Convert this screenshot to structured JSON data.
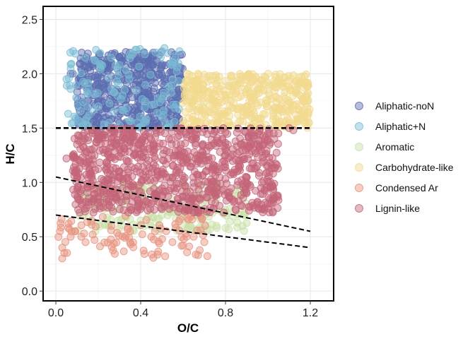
{
  "chart_data": {
    "type": "scatter",
    "title": "",
    "xlabel": "O/C",
    "ylabel": "H/C",
    "xlim": [
      -0.06,
      1.31
    ],
    "ylim": [
      -0.09,
      2.62
    ],
    "x_ticks": [
      0.0,
      0.4,
      0.8,
      1.2
    ],
    "x_tick_labels": [
      "0.0",
      "0.4",
      "0.8",
      "1.2"
    ],
    "y_ticks": [
      0.0,
      0.5,
      1.0,
      1.5,
      2.0,
      2.5
    ],
    "y_tick_labels": [
      "0.0",
      "0.5",
      "1.0",
      "1.5",
      "2.0",
      "2.5"
    ],
    "grid": true,
    "legend_position": "right",
    "series": [
      {
        "name": "Aliphatic-noN",
        "color": "#5b6db0",
        "region": {
          "x": [
            0.1,
            0.6
          ],
          "y": [
            1.5,
            2.2
          ]
        },
        "points": [
          [
            0.07,
            2.0
          ],
          [
            0.08,
            2.0
          ],
          [
            0.12,
            1.95
          ],
          [
            0.15,
            1.75
          ],
          [
            0.18,
            1.8
          ],
          [
            0.2,
            1.65
          ],
          [
            0.22,
            2.0
          ],
          [
            0.25,
            2.1
          ],
          [
            0.3,
            2.15
          ],
          [
            0.33,
            2.2
          ],
          [
            0.35,
            2.0
          ],
          [
            0.4,
            2.05
          ],
          [
            0.45,
            2.0
          ],
          [
            0.5,
            2.0
          ],
          [
            0.55,
            1.9
          ],
          [
            0.58,
            1.85
          ],
          [
            0.3,
            1.55
          ],
          [
            0.4,
            1.6
          ],
          [
            0.5,
            1.55
          ],
          [
            0.2,
            1.6
          ]
        ],
        "count": 520
      },
      {
        "name": "Aliphatic+N",
        "color": "#7bbcd5",
        "region": {
          "x": [
            0.05,
            0.6
          ],
          "y": [
            1.5,
            2.25
          ]
        },
        "points": [
          [
            0.05,
            1.95
          ],
          [
            0.12,
            1.55
          ],
          [
            0.14,
            1.57
          ],
          [
            0.3,
            2.08
          ],
          [
            0.38,
            2.22
          ],
          [
            0.42,
            2.18
          ],
          [
            0.55,
            1.95
          ],
          [
            0.5,
            1.6
          ],
          [
            0.2,
            1.7
          ],
          [
            0.25,
            1.55
          ]
        ],
        "count": 130
      },
      {
        "name": "Aromatic",
        "color": "#c9e0a8",
        "region": {
          "x": [
            0.1,
            0.9
          ],
          "y": [
            0.55,
            1.0
          ]
        },
        "points": [
          [
            0.12,
            0.85
          ],
          [
            0.13,
            0.7
          ],
          [
            0.2,
            0.95
          ],
          [
            0.3,
            0.75
          ],
          [
            0.4,
            0.65
          ],
          [
            0.5,
            0.7
          ],
          [
            0.6,
            0.6
          ],
          [
            0.7,
            0.62
          ],
          [
            0.8,
            0.58
          ],
          [
            0.88,
            0.6
          ]
        ],
        "count": 180
      },
      {
        "name": "Carbohydrate-like",
        "color": "#f1d98e",
        "region": {
          "x": [
            0.6,
            1.2
          ],
          "y": [
            1.5,
            2.0
          ]
        },
        "points": [
          [
            0.62,
            2.0
          ],
          [
            0.67,
            2.0
          ],
          [
            0.7,
            1.85
          ],
          [
            0.8,
            1.8
          ],
          [
            0.9,
            1.7
          ],
          [
            1.0,
            1.75
          ],
          [
            1.08,
            1.83
          ],
          [
            1.1,
            1.65
          ],
          [
            1.15,
            1.7
          ],
          [
            1.17,
            1.6
          ],
          [
            1.19,
            1.82
          ],
          [
            1.05,
            1.55
          ]
        ],
        "count": 420
      },
      {
        "name": "Condensed Ar",
        "color": "#e6927e",
        "region": {
          "x": [
            0.0,
            0.72
          ],
          "y": [
            0.3,
            0.7
          ]
        },
        "points": [
          [
            0.02,
            0.55
          ],
          [
            0.03,
            0.4
          ],
          [
            0.03,
            0.3
          ],
          [
            0.04,
            0.35
          ],
          [
            0.06,
            0.62
          ],
          [
            0.07,
            0.5
          ],
          [
            0.09,
            0.55
          ],
          [
            0.12,
            0.5
          ],
          [
            0.14,
            0.45
          ],
          [
            0.35,
            0.55
          ],
          [
            0.45,
            0.5
          ],
          [
            0.55,
            0.45
          ],
          [
            0.6,
            0.42
          ],
          [
            0.65,
            0.5
          ],
          [
            0.7,
            0.45
          ]
        ],
        "count": 90
      },
      {
        "name": "Lignin-like",
        "color": "#c46478",
        "region": {
          "x": [
            0.08,
            1.05
          ],
          "y": [
            0.72,
            1.5
          ]
        },
        "points": [
          [
            0.08,
            1.25
          ],
          [
            0.09,
            1.1
          ],
          [
            0.1,
            1.35
          ],
          [
            0.1,
            1.05
          ],
          [
            0.15,
            0.95
          ],
          [
            0.2,
            1.4
          ],
          [
            0.3,
            1.3
          ],
          [
            0.4,
            1.2
          ],
          [
            0.5,
            1.1
          ],
          [
            0.6,
            1.0
          ],
          [
            0.7,
            1.2
          ],
          [
            0.8,
            1.3
          ],
          [
            0.9,
            0.9
          ],
          [
            0.95,
            1.35
          ],
          [
            1.0,
            1.45
          ],
          [
            1.03,
            1.4
          ],
          [
            0.05,
            1.22
          ],
          [
            1.1,
            1.5
          ],
          [
            1.12,
            1.48
          ]
        ],
        "count": 900
      }
    ],
    "reference_lines": [
      {
        "x": [
          0.0,
          1.2
        ],
        "y": [
          1.5,
          1.5
        ],
        "style": "dashed"
      },
      {
        "x": [
          0.0,
          1.2
        ],
        "y": [
          1.05,
          0.55
        ],
        "style": "dashed"
      },
      {
        "x": [
          0.0,
          1.2
        ],
        "y": [
          0.7,
          0.4
        ],
        "style": "dashed"
      }
    ]
  }
}
